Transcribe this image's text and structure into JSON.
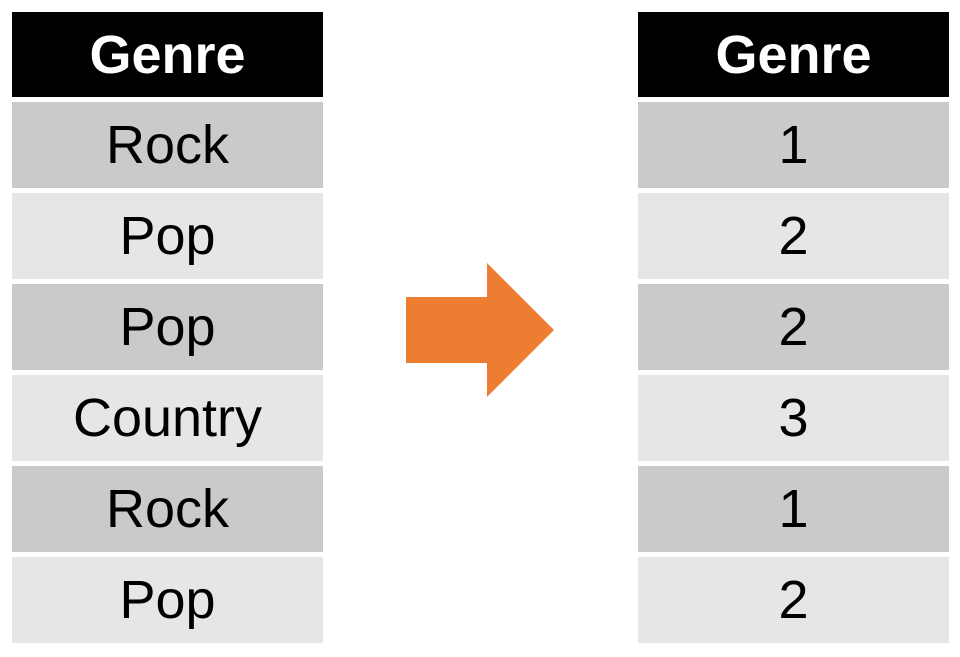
{
  "left_table": {
    "header": "Genre",
    "rows": [
      "Rock",
      "Pop",
      "Pop",
      "Country",
      "Rock",
      "Pop"
    ]
  },
  "right_table": {
    "header": "Genre",
    "rows": [
      "1",
      "2",
      "2",
      "3",
      "1",
      "2"
    ]
  },
  "colors": {
    "header_bg": "#000000",
    "header_text": "#ffffff",
    "row_dark": "#cacaca",
    "row_light": "#e6e6e6",
    "arrow": "#ed7d31"
  },
  "arrow_icon": "right-arrow-icon"
}
